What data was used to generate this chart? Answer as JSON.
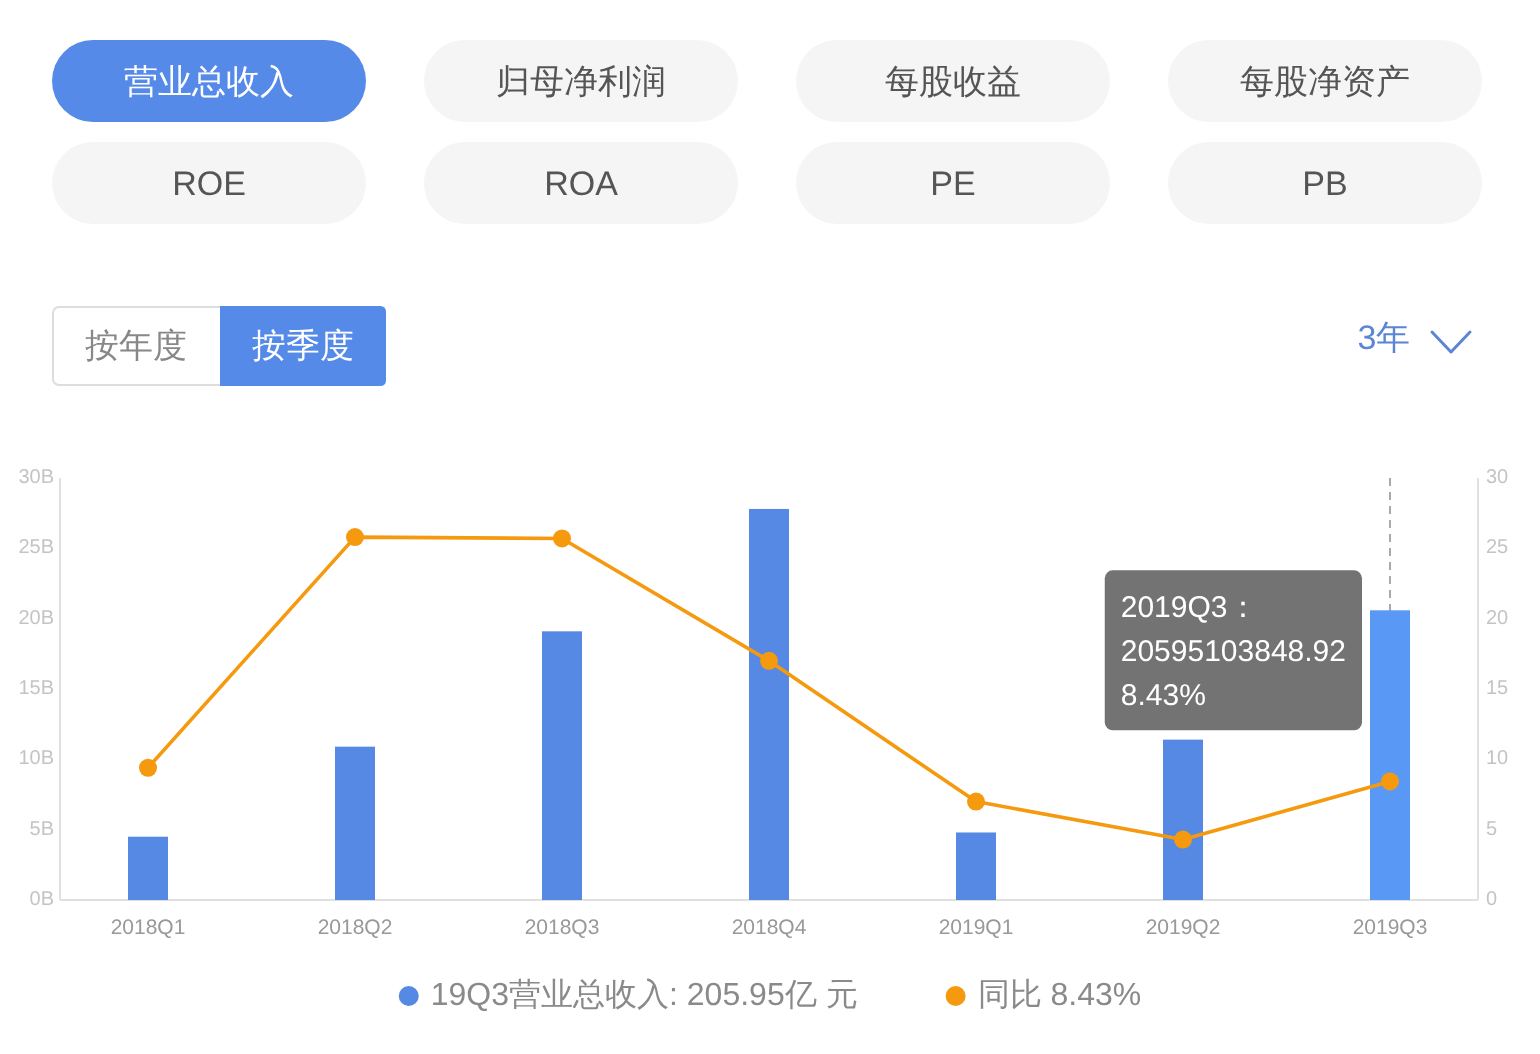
{
  "chart_data": {
    "type": "bar",
    "categories": [
      "2018Q1",
      "2018Q2",
      "2018Q3",
      "2018Q4",
      "2019Q1",
      "2019Q2",
      "2019Q3"
    ],
    "series": [
      {
        "name": "19Q3营业总收入: 205.95亿 元",
        "color": "#5589e3",
        "colors": [
          "#5589e3",
          "#5589e3",
          "#5589e3",
          "#5589e3",
          "#5589e3",
          "#5589e3",
          "#5a98f6"
        ],
        "values": [
          4.5,
          10.9,
          19.1,
          27.8,
          4.8,
          11.4,
          20.595
        ]
      },
      {
        "name": "同比 8.43%",
        "type": "line",
        "axis": "y2",
        "color": "#f5990f",
        "values": [
          9.4,
          25.8,
          25.7,
          17.0,
          7.0,
          4.3,
          8.43
        ]
      }
    ],
    "ylim": [
      0,
      30
    ],
    "yticks": [
      {
        "value": 0,
        "label": "0B"
      },
      {
        "value": 5,
        "label": "5B"
      },
      {
        "value": 10,
        "label": "10B"
      },
      {
        "value": 15,
        "label": "15B"
      },
      {
        "value": 20,
        "label": "20B"
      },
      {
        "value": 25,
        "label": "25B"
      },
      {
        "value": 30,
        "label": "30B"
      }
    ],
    "y2lim": [
      0,
      30
    ],
    "y2ticks": [
      0,
      5,
      10,
      15,
      20,
      25,
      30
    ],
    "ref_lines": [
      {
        "axis": "x",
        "value": "2019Q3",
        "color": "#aaaaaa",
        "line_style": "dashed"
      }
    ],
    "annotations": [
      "营业总收入",
      "归母净利润",
      "每股收益",
      "每股净资产",
      "ROE",
      "ROA",
      "PE",
      "PB",
      "按年度",
      "按季度",
      "3年",
      {
        "text": "2019Q3：\n20595103848.92\n8.43%",
        "x": "2019Q3",
        "y": 20.595
      }
    ],
    "legend": "bottom",
    "marker": "circle",
    "line_style": "solid"
  }
}
